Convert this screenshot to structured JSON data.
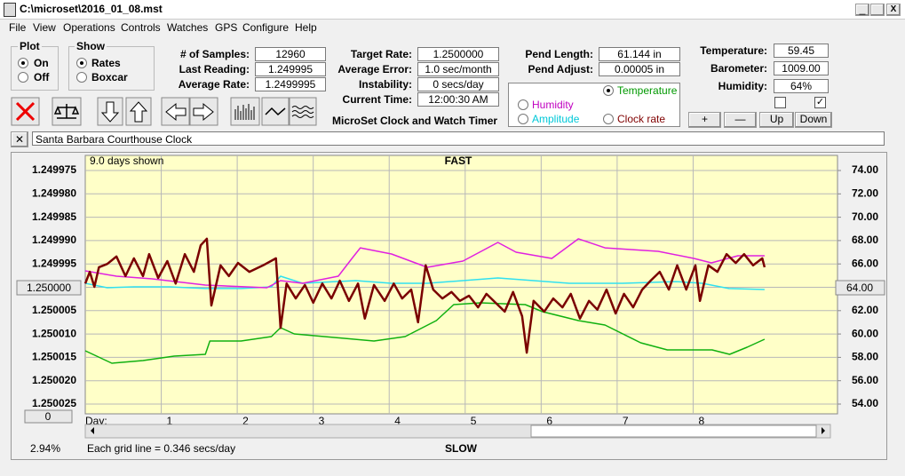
{
  "window": {
    "title": "C:\\microset\\2016_01_08.mst",
    "menu": [
      "File",
      "View",
      "Operations",
      "Controls",
      "Watches",
      "GPS",
      "Configure",
      "Help"
    ]
  },
  "plot_group": {
    "label": "Plot",
    "options": [
      "On",
      "Off"
    ]
  },
  "show_group": {
    "label": "Show",
    "options": [
      "Rates",
      "Boxcar"
    ]
  },
  "readouts": [
    {
      "label": "# of Samples:",
      "value": "12960"
    },
    {
      "label": "Last Reading:",
      "value": "1.249995"
    },
    {
      "label": "Average Rate:",
      "value": "1.2499995"
    },
    {
      "label": "Target Rate:",
      "value": "1.2500000"
    },
    {
      "label": "Average Error:",
      "value": "1.0 sec/month"
    },
    {
      "label": "Instability:",
      "value": "0 secs/day"
    },
    {
      "label": "Current Time:",
      "value": "12:00:30 AM"
    },
    {
      "label": "Pend Length:",
      "value": "61.144 in"
    },
    {
      "label": "Pend Adjust:",
      "value": "0.00005 in"
    },
    {
      "label": "Temperature:",
      "value": "59.45"
    },
    {
      "label": "Barometer:",
      "value": "1009.00"
    },
    {
      "label": "Humidity:",
      "value": "64%"
    }
  ],
  "app_name": "MicroSet Clock and Watch Timer",
  "buttons": [
    "+",
    "—",
    "Up",
    "Down"
  ],
  "clock_name": "Santa Barbara Courthouse Clock",
  "chart_data": {
    "type": "line",
    "title": "FAST",
    "bottom_label": "SLOW",
    "days_shown": "9.0 days shown",
    "x_label": "Day:",
    "center_left": "1.250000",
    "center_right": "64.00",
    "offset_box": "0",
    "percent": "2.94%",
    "grid_note": "Each grid line = 0.346 secs/day",
    "xlim": [
      0,
      9.9
    ],
    "xticks": [
      1,
      2,
      3,
      4,
      5,
      6,
      7,
      8
    ],
    "ylim": [
      1.250025,
      1.249975
    ],
    "yticks": [
      {
        "value": 1.249975,
        "label": "1.249975"
      },
      {
        "value": 1.24998,
        "label": "1.249980"
      },
      {
        "value": 1.249985,
        "label": "1.249985"
      },
      {
        "value": 1.24999,
        "label": "1.249990"
      },
      {
        "value": 1.249995,
        "label": "1.249995"
      },
      {
        "value": 1.25,
        "label": "1.250000"
      },
      {
        "value": 1.250005,
        "label": "1.250005"
      },
      {
        "value": 1.25001,
        "label": "1.250010"
      },
      {
        "value": 1.250015,
        "label": "1.250015"
      },
      {
        "value": 1.25002,
        "label": "1.250020"
      },
      {
        "value": 1.250025,
        "label": "1.250025"
      }
    ],
    "y2lim": [
      54,
      74
    ],
    "y2ticks": [
      {
        "value": 54,
        "label": "54.00"
      },
      {
        "value": 56,
        "label": "56.00"
      },
      {
        "value": 58,
        "label": "58.00"
      },
      {
        "value": 60,
        "label": "60.00"
      },
      {
        "value": 62,
        "label": "62.00"
      },
      {
        "value": 64,
        "label": "64.00"
      },
      {
        "value": 66,
        "label": "66.00"
      },
      {
        "value": 68,
        "label": "68.00"
      },
      {
        "value": 70,
        "label": "70.00"
      },
      {
        "value": 72,
        "label": "72.00"
      },
      {
        "value": 74,
        "label": "74.00"
      }
    ],
    "grid": true,
    "series": [
      {
        "name": "Clock rate",
        "color": "#7a0000",
        "x": [
          0,
          0.06,
          0.12,
          0.18,
          0.29,
          0.41,
          0.53,
          0.64,
          0.76,
          0.84,
          0.96,
          1.08,
          1.19,
          1.31,
          1.43,
          1.52,
          1.6,
          1.66,
          1.78,
          1.89,
          2.01,
          2.16,
          2.34,
          2.51,
          2.57,
          2.65,
          2.77,
          2.89,
          3.0,
          3.12,
          3.24,
          3.35,
          3.47,
          3.59,
          3.68,
          3.8,
          3.94,
          4.06,
          4.17,
          4.29,
          4.38,
          4.48,
          4.58,
          4.7,
          4.82,
          4.93,
          5.05,
          5.17,
          5.28,
          5.4,
          5.52,
          5.63,
          5.75,
          5.81,
          5.9,
          6.04,
          6.16,
          6.28,
          6.39,
          6.51,
          6.63,
          6.74,
          6.86,
          6.98,
          7.09,
          7.21,
          7.33,
          7.44,
          7.56,
          7.68,
          7.79,
          7.91,
          8.03,
          8.09,
          8.2,
          8.32,
          8.44,
          8.56,
          8.67,
          8.79,
          8.91,
          8.94
        ],
        "values": [
          1.2499992,
          1.2499967,
          1.2499999,
          1.2499957,
          1.249995,
          1.2499934,
          1.2499976,
          1.2499938,
          1.2499976,
          1.2499929,
          1.249998,
          1.2499944,
          1.2499992,
          1.2499929,
          1.2499967,
          1.249991,
          1.2499896,
          1.2500039,
          1.2499953,
          1.2499976,
          1.2499948,
          1.2499967,
          1.2499953,
          1.2499938,
          1.2500087,
          1.2499992,
          1.2500024,
          1.2499995,
          1.2500033,
          1.2499992,
          1.2500024,
          1.2499986,
          1.2500029,
          1.2499992,
          1.2500067,
          1.2499995,
          1.2500029,
          1.2499992,
          1.2500024,
          1.2500005,
          1.2500075,
          1.2499953,
          1.2500005,
          1.2500024,
          1.250001,
          1.2500029,
          1.2500018,
          1.2500043,
          1.2500014,
          1.2500033,
          1.2500052,
          1.250001,
          1.2500062,
          1.250014,
          1.2500029,
          1.2500052,
          1.2500024,
          1.2500043,
          1.2500014,
          1.2500067,
          1.2500029,
          1.2500048,
          1.2500005,
          1.2500056,
          1.2500014,
          1.2500043,
          1.2500005,
          1.2499986,
          1.2499967,
          1.2500005,
          1.2499953,
          1.2500005,
          1.2499953,
          1.2500029,
          1.2499953,
          1.2499967,
          1.2499929,
          1.2499948,
          1.2499929,
          1.2499953,
          1.2499938,
          1.2499957
        ]
      },
      {
        "name": "Humidity",
        "color": "#e020e0",
        "axis": "y2",
        "x": [
          0,
          0.41,
          0.88,
          1.58,
          2.39,
          2.57,
          2.86,
          3.33,
          3.51,
          3.62,
          4.03,
          4.5,
          4.97,
          5.43,
          5.67,
          6.14,
          6.49,
          6.84,
          7.54,
          8.01,
          8.24,
          8.59,
          8.94
        ],
        "values": [
          65.41,
          64.95,
          64.72,
          64.19,
          63.96,
          64.57,
          64.34,
          64.95,
          66.47,
          67.38,
          66.85,
          65.71,
          66.24,
          67.84,
          67.0,
          66.47,
          68.15,
          67.38,
          67.08,
          66.47,
          66.09,
          66.7,
          66.7
        ]
      },
      {
        "name": "Amplitude",
        "color": "#30e0f0",
        "axis": "y2",
        "x": [
          0,
          0.29,
          0.64,
          1.11,
          1.58,
          2.05,
          2.45,
          2.57,
          2.86,
          3.56,
          4.03,
          4.5,
          4.97,
          5.43,
          5.9,
          6.37,
          7.07,
          7.77,
          8.12,
          8.47,
          8.94
        ],
        "values": [
          64.34,
          63.96,
          64.04,
          64.04,
          63.89,
          63.89,
          64.04,
          64.95,
          64.34,
          64.57,
          64.34,
          64.34,
          64.57,
          64.8,
          64.57,
          64.34,
          64.34,
          64.49,
          64.34,
          63.89,
          63.81
        ]
      },
      {
        "name": "Temperature",
        "color": "#10b010",
        "axis": "y2",
        "x": [
          0,
          0.35,
          0.76,
          1.17,
          1.58,
          1.64,
          2.05,
          2.45,
          2.57,
          2.75,
          3.8,
          4.21,
          4.62,
          4.85,
          5.2,
          5.79,
          6.02,
          6.49,
          6.84,
          7.31,
          7.66,
          8.25,
          8.48,
          8.71,
          8.94
        ],
        "values": [
          58.56,
          57.5,
          57.73,
          58.11,
          58.26,
          59.4,
          59.4,
          59.78,
          60.54,
          60.01,
          59.4,
          59.78,
          61.15,
          62.52,
          62.67,
          62.52,
          61.91,
          61.15,
          60.77,
          59.25,
          58.64,
          58.64,
          58.26,
          58.87,
          59.55
        ]
      }
    ]
  }
}
